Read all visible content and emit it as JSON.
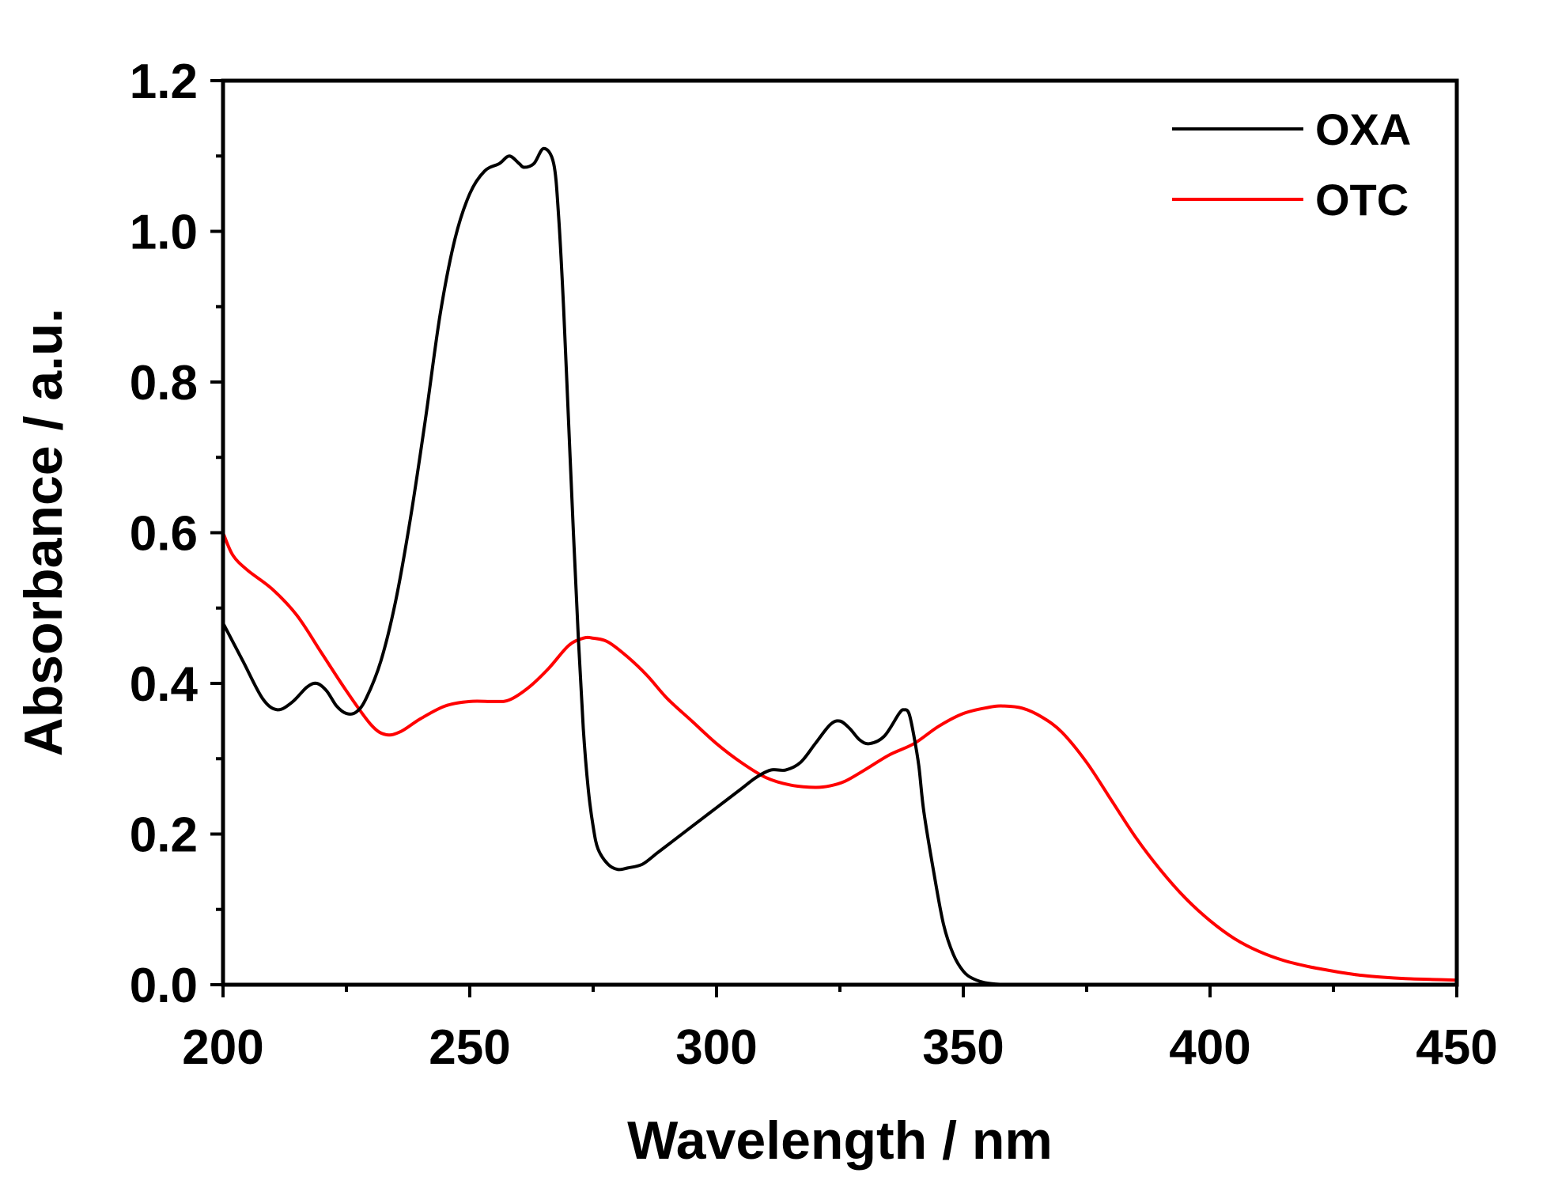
{
  "chart_data": {
    "type": "line",
    "title": "",
    "xlabel": "Wavelength / nm",
    "ylabel": "Absorbance / a.u.",
    "xlim": [
      200,
      450
    ],
    "ylim": [
      0,
      1.2
    ],
    "x_ticks": [
      200,
      250,
      300,
      350,
      400,
      450
    ],
    "x_tick_labels": [
      "200",
      "250",
      "300",
      "350",
      "400",
      "450"
    ],
    "y_ticks": [
      0,
      0.2,
      0.4,
      0.6,
      0.8,
      1.0,
      1.2
    ],
    "y_tick_labels": [
      "0.0",
      "0.2",
      "0.4",
      "0.6",
      "0.8",
      "1.0",
      "1.2"
    ],
    "grid": false,
    "legend_position": "top-right",
    "series": [
      {
        "name": "OXA",
        "color": "#000000",
        "x": [
          200,
          204,
          208,
          211,
          214,
          217,
          219,
          221,
          223,
          225,
          227,
          229,
          232,
          235,
          238,
          241,
          244,
          247,
          250,
          253,
          256,
          258,
          260,
          261,
          263,
          265,
          267,
          268,
          269,
          270,
          271,
          272,
          273,
          274,
          275,
          276,
          278,
          280,
          282,
          285,
          288,
          291,
          295,
          300,
          305,
          308,
          311,
          314,
          317,
          320,
          323,
          325,
          327,
          329,
          331,
          334,
          337,
          338,
          339,
          340,
          341,
          342,
          344,
          346,
          348,
          350,
          352,
          355,
          360,
          370
        ],
        "y": [
          0.48,
          0.43,
          0.38,
          0.365,
          0.375,
          0.395,
          0.4,
          0.39,
          0.37,
          0.36,
          0.362,
          0.38,
          0.43,
          0.51,
          0.62,
          0.75,
          0.89,
          0.99,
          1.05,
          1.08,
          1.09,
          1.1,
          1.09,
          1.085,
          1.09,
          1.11,
          1.09,
          1.02,
          0.9,
          0.75,
          0.6,
          0.46,
          0.34,
          0.26,
          0.21,
          0.18,
          0.16,
          0.153,
          0.155,
          0.16,
          0.175,
          0.19,
          0.21,
          0.235,
          0.26,
          0.275,
          0.285,
          0.285,
          0.295,
          0.32,
          0.345,
          0.35,
          0.34,
          0.325,
          0.32,
          0.33,
          0.36,
          0.365,
          0.36,
          0.33,
          0.29,
          0.23,
          0.15,
          0.08,
          0.04,
          0.018,
          0.008,
          0.002,
          0.0,
          0.0
        ]
      },
      {
        "name": "OTC",
        "color": "#ff0000",
        "x": [
          200,
          202,
          205,
          210,
          215,
          220,
          225,
          230,
          233,
          236,
          240,
          245,
          250,
          255,
          258,
          262,
          266,
          270,
          273,
          275,
          278,
          282,
          286,
          290,
          295,
          300,
          305,
          310,
          315,
          320,
          323,
          326,
          330,
          335,
          340,
          345,
          350,
          355,
          358,
          362,
          366,
          370,
          375,
          380,
          385,
          390,
          395,
          400,
          405,
          410,
          415,
          420,
          425,
          430,
          435,
          440,
          445,
          450
        ],
        "y": [
          0.6,
          0.57,
          0.55,
          0.525,
          0.49,
          0.44,
          0.39,
          0.345,
          0.332,
          0.336,
          0.353,
          0.37,
          0.376,
          0.376,
          0.378,
          0.395,
          0.42,
          0.45,
          0.46,
          0.46,
          0.455,
          0.435,
          0.41,
          0.38,
          0.35,
          0.32,
          0.295,
          0.275,
          0.265,
          0.262,
          0.264,
          0.27,
          0.285,
          0.305,
          0.32,
          0.343,
          0.36,
          0.368,
          0.37,
          0.367,
          0.355,
          0.335,
          0.295,
          0.245,
          0.195,
          0.152,
          0.115,
          0.085,
          0.061,
          0.044,
          0.032,
          0.024,
          0.018,
          0.013,
          0.01,
          0.008,
          0.007,
          0.006
        ]
      }
    ]
  }
}
